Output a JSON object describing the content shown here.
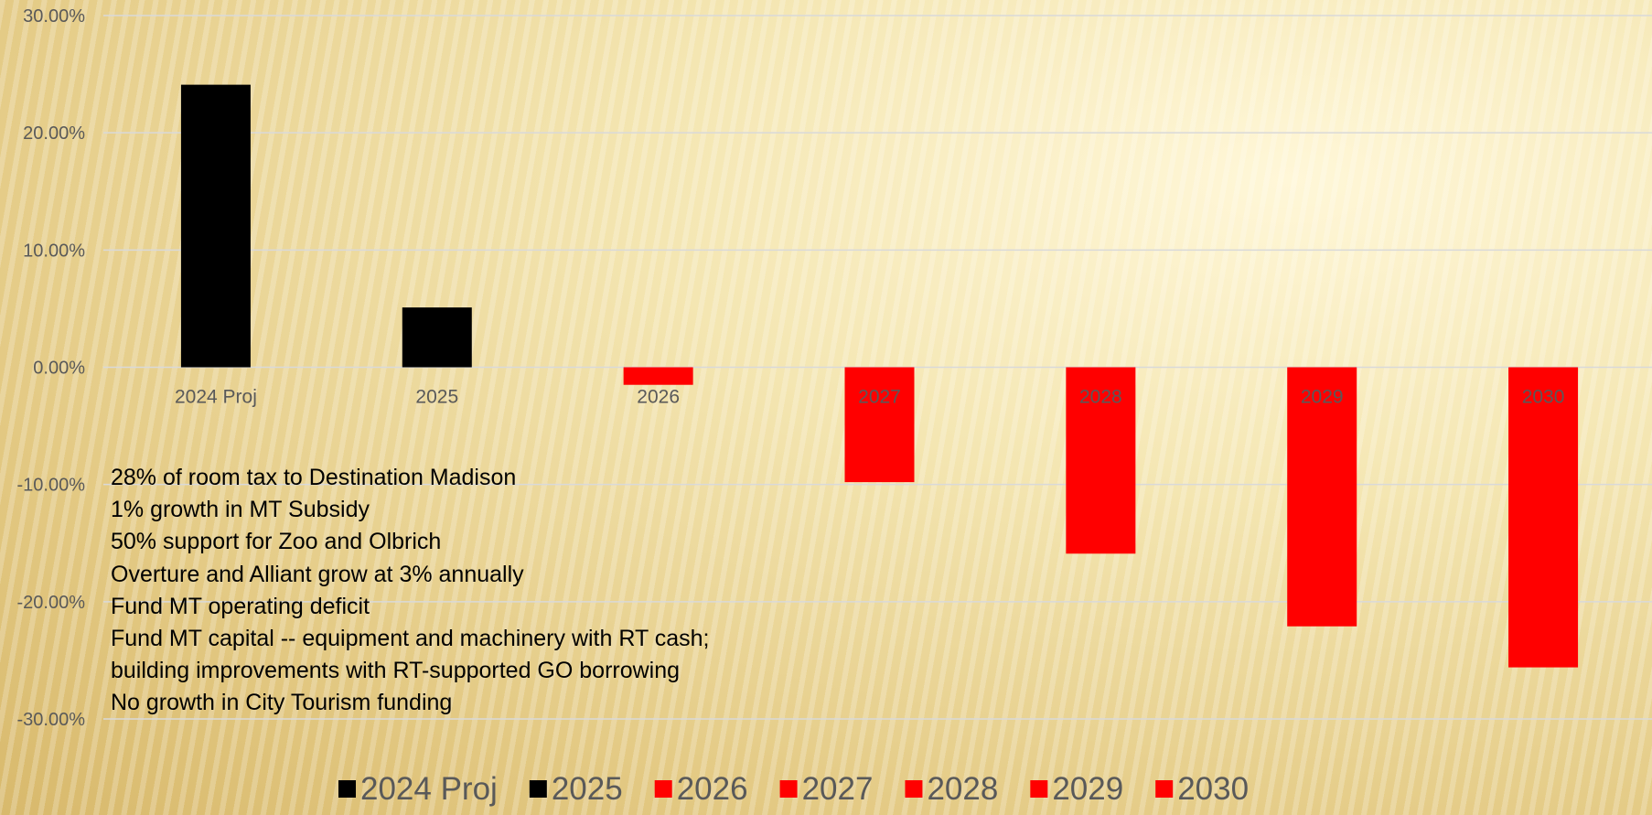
{
  "chart_data": {
    "type": "bar",
    "categories": [
      "2024 Proj",
      "2025",
      "2026",
      "2027",
      "2028",
      "2029",
      "2030"
    ],
    "values": [
      24.1,
      5.1,
      -1.5,
      -9.8,
      -15.9,
      -22.1,
      -25.6
    ],
    "bar_colors": [
      "#000000",
      "#000000",
      "#ff0000",
      "#ff0000",
      "#ff0000",
      "#ff0000",
      "#ff0000"
    ],
    "y_ticks": [
      "30.00%",
      "20.00%",
      "10.00%",
      "0.00%",
      "-10.00%",
      "-20.00%",
      "-30.00%"
    ],
    "ylim": [
      -30,
      30
    ],
    "grid": true,
    "legend_position": "bottom",
    "legend": [
      {
        "label": "2024 Proj",
        "color": "#000000"
      },
      {
        "label": "2025",
        "color": "#000000"
      },
      {
        "label": "2026",
        "color": "#ff0000"
      },
      {
        "label": "2027",
        "color": "#ff0000"
      },
      {
        "label": "2028",
        "color": "#ff0000"
      },
      {
        "label": "2029",
        "color": "#ff0000"
      },
      {
        "label": "2030",
        "color": "#ff0000"
      }
    ],
    "title": "",
    "xlabel": "",
    "ylabel": ""
  },
  "notes": [
    "28% of room tax to Destination Madison",
    "1% growth in MT Subsidy",
    "50% support for Zoo and Olbrich",
    "Overture and Alliant grow at 3% annually",
    "Fund MT operating deficit",
    "Fund MT capital -- equipment and machinery with RT cash; building improvements with RT-supported GO borrowing",
    "No growth in City Tourism funding"
  ]
}
